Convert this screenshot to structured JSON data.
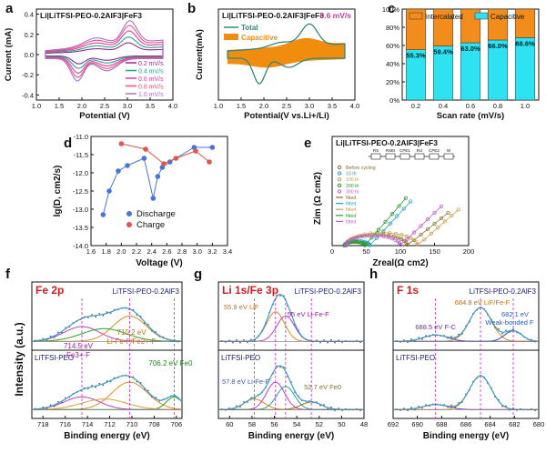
{
  "chart_data": [
    {
      "panel": "a",
      "type": "line",
      "title": "Li|LiTFSI-PEO-0.2AlF3|FeF3",
      "xlabel": "Potential (V)",
      "ylabel": "Current (mA)",
      "xlim": [
        1.0,
        4.0
      ],
      "ylim": [
        -0.45,
        0.45
      ],
      "xticks": [
        "1.0",
        "1.5",
        "2.0",
        "2.5",
        "3.0",
        "3.5",
        "4.0"
      ],
      "yticks": [
        "-0.4",
        "-0.2",
        "0.0",
        "0.2",
        "0.4"
      ],
      "legend_position": "bottom-right",
      "series": [
        {
          "name": "0.2 mV/s",
          "color": "#8b2f8b",
          "scale": 0.35
        },
        {
          "name": "0.4 mV/s",
          "color": "#2ca48c",
          "scale": 0.52
        },
        {
          "name": "0.6 mV/s",
          "color": "#d63fa8",
          "scale": 0.7
        },
        {
          "name": "0.8 mV/s",
          "color": "#e3557e",
          "scale": 0.86
        },
        {
          "name": "1.0 mV/s",
          "color": "#b06ec8",
          "scale": 1.0
        }
      ]
    },
    {
      "panel": "b",
      "type": "area",
      "title": "Li|LiTFSI-PEO-0.2AlF3|FeF3",
      "annotation": "0.6 mV/s",
      "xlabel": "Potential(V vs.Li+/Li)",
      "ylabel": "Current(mA)",
      "xlim": [
        1.0,
        4.0
      ],
      "xticks": [
        "1.0",
        "1.5",
        "2.0",
        "2.5",
        "3.0",
        "3.5",
        "4.0"
      ],
      "legend_position": "top-left",
      "series": [
        {
          "name": "Total",
          "color": "#2e8b7a"
        },
        {
          "name": "Capacitive",
          "color": "#f28c0f"
        }
      ]
    },
    {
      "panel": "c",
      "type": "bar",
      "categories": [
        "0.2",
        "0.4",
        "0.6",
        "0.8",
        "1.0"
      ],
      "xlabel": "Scan rate (mV/s)",
      "ylabel": "",
      "ylim": [
        0,
        100
      ],
      "yticks": [
        "0%",
        "20%",
        "40%",
        "60%",
        "80%",
        "100%"
      ],
      "legend_position": "top",
      "series": [
        {
          "name": "Capacitive",
          "color": "#2ee2f2",
          "values": [
            55.3,
            59.4,
            63.0,
            66.0,
            68.6
          ]
        },
        {
          "name": "Intercalated",
          "color": "#f28c1c",
          "values": [
            44.7,
            40.6,
            37.0,
            34.0,
            31.4
          ]
        }
      ],
      "value_labels": [
        "55.3%",
        "59.4%",
        "63.0%",
        "66.0%",
        "68.6%"
      ]
    },
    {
      "panel": "d",
      "type": "line",
      "xlabel": "Voltage (V)",
      "ylabel": "lg(D, cm2/s)",
      "xlim": [
        1.6,
        3.4
      ],
      "ylim": [
        -14.0,
        -11.0
      ],
      "xticks": [
        "1.6",
        "1.8",
        "2.0",
        "2.2",
        "2.4",
        "2.6",
        "2.8",
        "3.0",
        "3.2",
        "3.4"
      ],
      "yticks": [
        "-14.0",
        "-13.5",
        "-13.0",
        "-12.5",
        "-12.0",
        "-11.5",
        "-11.0"
      ],
      "legend_position": "bottom-center",
      "series": [
        {
          "name": "Discharge",
          "color": "#4a73d9",
          "x": [
            1.76,
            1.84,
            1.96,
            2.08,
            2.3,
            2.42,
            2.48,
            2.54,
            2.64,
            2.96,
            3.2
          ],
          "y": [
            -13.15,
            -12.5,
            -11.95,
            -11.8,
            -11.6,
            -12.7,
            -12.1,
            -11.85,
            -11.7,
            -11.3,
            -11.3
          ]
        },
        {
          "name": "Charge",
          "color": "#e0554d",
          "x": [
            2.0,
            2.32,
            2.56,
            2.72,
            2.98,
            3.16
          ],
          "y": [
            -11.2,
            -11.35,
            -11.75,
            -11.6,
            -11.4,
            -11.7
          ]
        }
      ]
    },
    {
      "panel": "e",
      "type": "scatter",
      "title": "Li|LiTFSI-PEO-0.2AlF3|FeF3",
      "xlabel": "Zreal(Ω cm2)",
      "ylabel": "Zim (Ω cm2)",
      "xlim": [
        0,
        200
      ],
      "ylim": [
        0,
        200
      ],
      "xticks": [
        "0",
        "50",
        "100",
        "150",
        "200"
      ],
      "circuit_labels": [
        "RS",
        "RSEI",
        "CPE1",
        "Rct",
        "CPE2",
        "W"
      ],
      "legend_position": "left",
      "legend": [
        "Before cycling",
        "10 th",
        "100 th",
        "200 th",
        "300 th",
        "fitted",
        "fitted",
        "fitted",
        "fitted",
        "fitted"
      ],
      "series": [
        {
          "name": "Before cycling",
          "color": "#8a6a2a"
        },
        {
          "name": "10 th",
          "color": "#2aa0b8"
        },
        {
          "name": "100 th",
          "color": "#c8a050"
        },
        {
          "name": "200 th",
          "color": "#2a9a2a"
        },
        {
          "name": "300 th",
          "color": "#c060d0"
        }
      ]
    },
    {
      "panel": "f",
      "type": "line",
      "title": "Fe 2p",
      "xlabel": "Binding energy (eV)",
      "ylabel": "Intensity (a.u.)",
      "xlim": [
        719,
        705.5
      ],
      "xticks": [
        "718",
        "716",
        "714",
        "712",
        "710",
        "708",
        "706"
      ],
      "samples": [
        "LiTFSI-PEO-0.2AlF3",
        "LiTFSI-PEO"
      ],
      "annotations": [
        "714.5 eV",
        "Fe3+-F",
        "710.2 eV",
        "Li-Fe-F/Fe2+-F",
        "706.2 eV Fe0"
      ],
      "peaks_eV": [
        714.5,
        710.2,
        706.2
      ]
    },
    {
      "panel": "g",
      "type": "line",
      "title": "Li 1s/Fe 3p",
      "xlabel": "Binding energy (eV)",
      "ylabel": "",
      "xlim": [
        61,
        48
      ],
      "xticks": [
        "60",
        "58",
        "56",
        "54",
        "52",
        "50",
        "48"
      ],
      "samples": [
        "LiTFSI-PEO-0.2AlF3",
        "LiTFSI-PEO"
      ],
      "annotations": [
        "55.9 eV LiF",
        "55 eV Li-Fe-F",
        "57.8 eV Li-Fe-F",
        "52.7 eV Fe0"
      ],
      "peaks_eV": [
        57.8,
        55.9,
        55.0,
        52.7
      ]
    },
    {
      "panel": "h",
      "type": "line",
      "title": "F 1s",
      "xlabel": "Binding energy (eV)",
      "ylabel": "",
      "xlim": [
        692,
        680
      ],
      "xticks": [
        "692",
        "690",
        "688",
        "686",
        "684",
        "682",
        "680"
      ],
      "samples": [
        "LiTFSI-PEO-0.2AlF3",
        "LiTFSI-PEO"
      ],
      "annotations": [
        "684.8 eV LiF/Fe-F",
        "682.1 eV",
        "Weak-bonded F",
        "688.5 eV F-C"
      ],
      "peaks_eV": [
        688.5,
        684.8,
        682.1
      ]
    }
  ]
}
